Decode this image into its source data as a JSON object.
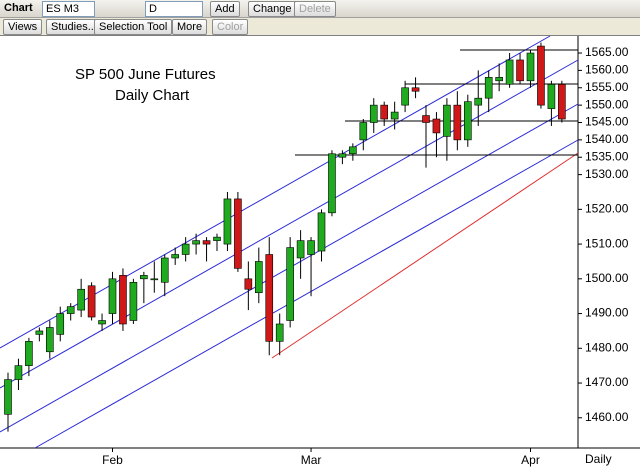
{
  "toolbar": {
    "title": "Chart",
    "symbol": "ES M3",
    "interval": "D",
    "add": "Add",
    "change": "Change",
    "delete": "Delete",
    "views": "Views",
    "studies": "Studies...",
    "selection_tool": "Selection Tool",
    "more": "More",
    "color": "Color"
  },
  "chart_data": {
    "type": "candlestick",
    "annotations": [
      "SP 500 June Futures",
      "Daily Chart"
    ],
    "x_label": "Daily",
    "categories": [
      null,
      null,
      null,
      null,
      null,
      null,
      null,
      null,
      null,
      null,
      "Feb",
      null,
      null,
      null,
      null,
      null,
      null,
      null,
      null,
      null,
      null,
      null,
      null,
      null,
      null,
      null,
      null,
      null,
      null,
      "Mar",
      null,
      null,
      null,
      null,
      null,
      null,
      null,
      null,
      null,
      null,
      null,
      null,
      null,
      null,
      null,
      null,
      null,
      null,
      null,
      null,
      "Apr",
      null,
      null,
      null
    ],
    "open": [
      1461,
      1471,
      1475,
      1484,
      1479,
      1484,
      1490,
      1491,
      1498,
      1487,
      1490,
      1501,
      1488,
      1500,
      1500,
      1499,
      1506,
      1507,
      1510,
      1511,
      1511,
      1510,
      1523,
      1500,
      1496,
      1507,
      1482,
      1488,
      1506,
      1507,
      1508,
      1519,
      1535,
      1536,
      1540,
      1545,
      1550,
      1546,
      1550,
      1555,
      1547,
      1546,
      1541,
      1550,
      1540,
      1550,
      1552,
      1557,
      1556,
      1563,
      1557,
      1567,
      1549,
      1556
    ],
    "high": [
      1473,
      1477,
      1483,
      1486,
      1488,
      1492,
      1493,
      1500,
      1499,
      1490,
      1502,
      1503,
      1500,
      1502,
      1505,
      1507,
      1509,
      1512,
      1513,
      1512,
      1513,
      1525,
      1525,
      1505,
      1509,
      1512,
      1490,
      1512,
      1514,
      1512,
      1520,
      1537,
      1537,
      1539,
      1546,
      1552,
      1551,
      1551,
      1557,
      1558,
      1550,
      1548,
      1552,
      1554,
      1553,
      1560,
      1560,
      1562,
      1565,
      1565,
      1566,
      1568,
      1557,
      1557
    ],
    "low": [
      1456,
      1468,
      1472,
      1482,
      1477,
      1482,
      1488,
      1489,
      1488,
      1485,
      1487,
      1485,
      1487,
      1493,
      1496,
      1495,
      1504,
      1505,
      1507,
      1505,
      1508,
      1508,
      1502,
      1491,
      1493,
      1478,
      1478,
      1486,
      1500,
      1495,
      1505,
      1518,
      1533,
      1534,
      1537,
      1542,
      1544,
      1543,
      1548,
      1552,
      1532,
      1535,
      1534,
      1537,
      1538,
      1544,
      1548,
      1554,
      1555,
      1556,
      1555,
      1549,
      1544,
      1545
    ],
    "close": [
      1471,
      1475,
      1482,
      1485,
      1486,
      1490,
      1492,
      1497,
      1489,
      1488,
      1500,
      1487,
      1499,
      1501,
      1500,
      1506,
      1507,
      1510,
      1511,
      1510,
      1512,
      1523,
      1503,
      1497,
      1505,
      1482,
      1487,
      1509,
      1511,
      1511,
      1519,
      1536,
      1536,
      1538,
      1545,
      1550,
      1546,
      1548,
      1555,
      1554,
      1545,
      1542,
      1550,
      1540,
      1551,
      1552,
      1558,
      1558,
      1563,
      1557,
      1565,
      1550,
      1556,
      1546
    ],
    "up_color": "#1faa1f",
    "down_color": "#d01818",
    "ylim": [
      1451.3,
      1569.9
    ],
    "yticks": [
      {
        "value": 1460,
        "label": "1460.00"
      },
      {
        "value": 1470,
        "label": "1470.00"
      },
      {
        "value": 1480,
        "label": "1480.00"
      },
      {
        "value": 1490,
        "label": "1490.00"
      },
      {
        "value": 1500,
        "label": "1500.00"
      },
      {
        "value": 1510,
        "label": "1510.00"
      },
      {
        "value": 1520,
        "label": "1520.00"
      },
      {
        "value": 1530,
        "label": "1530.00"
      },
      {
        "value": 1535,
        "label": "1535.00"
      },
      {
        "value": 1540,
        "label": "1540.00"
      },
      {
        "value": 1545,
        "label": "1545.00"
      },
      {
        "value": 1550,
        "label": "1550.00"
      },
      {
        "value": 1555,
        "label": "1555.00"
      },
      {
        "value": 1560,
        "label": "1560.00"
      },
      {
        "value": 1565,
        "label": "1565.00"
      }
    ]
  }
}
